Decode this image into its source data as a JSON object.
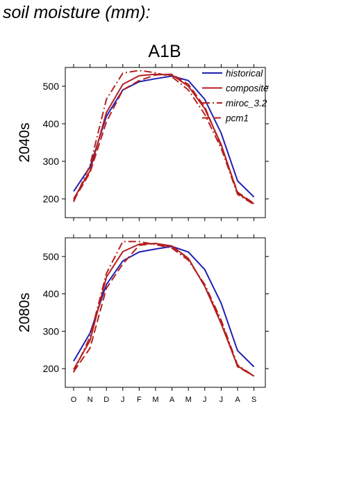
{
  "page": {
    "title": "soil moisture (mm):"
  },
  "colors": {
    "historical": "#1f1fb4",
    "projection": "#b41f1f",
    "frame": "#000000"
  },
  "chart_data": {
    "type": "line",
    "title": "A1B",
    "categories": [
      "O",
      "N",
      "D",
      "J",
      "F",
      "M",
      "A",
      "M",
      "J",
      "J",
      "A",
      "S"
    ],
    "ylim": [
      150,
      550
    ],
    "yticks": [
      200,
      300,
      400,
      500
    ],
    "legend": {
      "placement": "top-right",
      "entries": [
        "historical",
        "composite",
        "miroc_3.2",
        "pcm1"
      ]
    },
    "panels": [
      {
        "label": "2040s",
        "series": [
          {
            "name": "historical",
            "style": "solid",
            "values": [
              220,
              285,
              420,
              490,
              512,
              520,
              527,
              515,
              465,
              375,
              248,
              205
            ]
          },
          {
            "name": "composite",
            "style": "solid",
            "values": [
              200,
              275,
              430,
              505,
              528,
              532,
              530,
              500,
              440,
              345,
              215,
              187
            ]
          },
          {
            "name": "miroc_3.2",
            "style": "dashdot",
            "values": [
              192,
              290,
              465,
              535,
              542,
              536,
              525,
              490,
              425,
              335,
              212,
              185
            ]
          },
          {
            "name": "pcm1",
            "style": "dashed",
            "values": [
              196,
              270,
              405,
              490,
              515,
              530,
              532,
              505,
              445,
              340,
              218,
              188
            ]
          }
        ]
      },
      {
        "label": "2080s",
        "series": [
          {
            "name": "historical",
            "style": "solid",
            "values": [
              220,
              295,
              425,
              488,
              512,
              520,
              527,
              512,
              465,
              375,
              248,
              205
            ]
          },
          {
            "name": "composite",
            "style": "solid",
            "values": [
              198,
              275,
              445,
              513,
              533,
              535,
              528,
              495,
              420,
              320,
              207,
              180
            ]
          },
          {
            "name": "miroc_3.2",
            "style": "dashdot",
            "values": [
              190,
              285,
              455,
              540,
              540,
              532,
              522,
              490,
              425,
              330,
              210,
              180
            ]
          },
          {
            "name": "pcm1",
            "style": "dashed",
            "values": [
              192,
              255,
              415,
              480,
              530,
              535,
              525,
              495,
              420,
              325,
              205,
              180
            ]
          }
        ]
      }
    ]
  }
}
